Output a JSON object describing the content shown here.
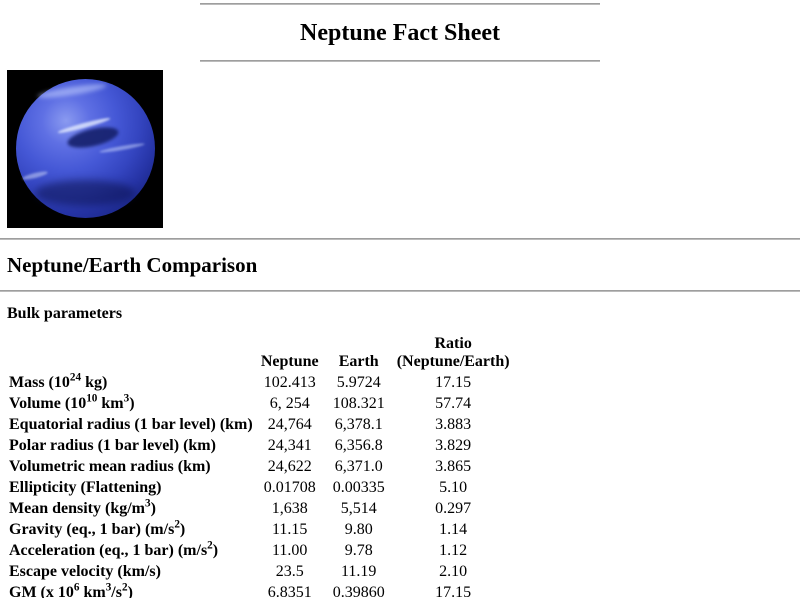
{
  "title": "Neptune Fact Sheet",
  "sections": {
    "comparison_heading": "Neptune/Earth Comparison",
    "bulk_heading": "Bulk parameters"
  },
  "image": {
    "name": "neptune-photo",
    "colors": {
      "planet_blue": "#3c50cc",
      "background": "#000000"
    }
  },
  "colors": {
    "rule_gray": "#9a9a9a",
    "text": "#000000",
    "page_background": "#ffffff"
  },
  "table": {
    "columns": {
      "neptune": "Neptune",
      "earth": "Earth",
      "ratio_line1": "Ratio",
      "ratio_line2": "(Neptune/Earth)"
    },
    "rows": [
      {
        "label": [
          {
            "t": "Mass (10"
          },
          {
            "sup": "24"
          },
          {
            "t": " kg)"
          }
        ],
        "neptune": "102.413",
        "earth": "5.9724",
        "ratio": "17.15"
      },
      {
        "label": [
          {
            "t": "Volume (10"
          },
          {
            "sup": "10"
          },
          {
            "t": " km"
          },
          {
            "sup": "3"
          },
          {
            "t": ")"
          }
        ],
        "neptune": "6, 254",
        "earth": "108.321",
        "ratio": "57.74"
      },
      {
        "label": [
          {
            "t": "Equatorial radius (1 bar level) (km)"
          }
        ],
        "neptune": "24,764",
        "earth": "6,378.1",
        "ratio": "3.883"
      },
      {
        "label": [
          {
            "t": "Polar radius (1 bar level) (km)"
          }
        ],
        "neptune": "24,341",
        "earth": "6,356.8",
        "ratio": "3.829"
      },
      {
        "label": [
          {
            "t": "Volumetric mean radius (km)"
          }
        ],
        "neptune": "24,622",
        "earth": "6,371.0",
        "ratio": "3.865"
      },
      {
        "label": [
          {
            "t": "Ellipticity (Flattening)"
          }
        ],
        "neptune": "0.01708",
        "earth": "0.00335",
        "ratio": "5.10"
      },
      {
        "label": [
          {
            "t": "Mean density (kg/m"
          },
          {
            "sup": "3"
          },
          {
            "t": ")"
          }
        ],
        "neptune": "1,638",
        "earth": "5,514",
        "ratio": "0.297"
      },
      {
        "label": [
          {
            "t": "Gravity (eq., 1 bar) (m/s"
          },
          {
            "sup": "2"
          },
          {
            "t": ")"
          }
        ],
        "neptune": "11.15",
        "earth": "9.80",
        "ratio": "1.14"
      },
      {
        "label": [
          {
            "t": "Acceleration (eq., 1 bar) (m/s"
          },
          {
            "sup": "2"
          },
          {
            "t": ")"
          }
        ],
        "neptune": "11.00",
        "earth": "9.78",
        "ratio": "1.12"
      },
      {
        "label": [
          {
            "t": "Escape velocity (km/s)"
          }
        ],
        "neptune": "23.5",
        "earth": "11.19",
        "ratio": "2.10"
      },
      {
        "label": [
          {
            "t": "GM (x 10"
          },
          {
            "sup": "6"
          },
          {
            "t": " km"
          },
          {
            "sup": "3"
          },
          {
            "t": "/s"
          },
          {
            "sup": "2"
          },
          {
            "t": ")"
          }
        ],
        "neptune": "6.8351",
        "earth": "0.39860",
        "ratio": "17.15"
      }
    ]
  }
}
